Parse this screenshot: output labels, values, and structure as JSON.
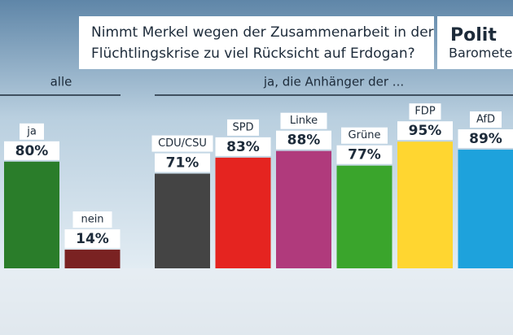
{
  "logo": {
    "line1": "Polit",
    "line2": "Barometer"
  },
  "chart_data": {
    "type": "bar",
    "title": [
      "Nimmt Merkel wegen der Zusammenarbeit in der",
      "Flüchtlingskrise zu viel Rücksicht auf Erdogan?"
    ],
    "groups": [
      {
        "label": "alle",
        "categories": [
          "ja",
          "nein"
        ],
        "values": [
          80,
          14
        ],
        "value_labels": [
          "80%",
          "14%"
        ],
        "colors": [
          "#2a7d2a",
          "#7a2222"
        ]
      },
      {
        "label": "ja, die Anhänger der ...",
        "categories": [
          "CDU/CSU",
          "SPD",
          "Linke",
          "Grüne",
          "FDP",
          "AfD"
        ],
        "values": [
          71,
          83,
          88,
          77,
          95,
          89
        ],
        "value_labels": [
          "71%",
          "83%",
          "88%",
          "77%",
          "95%",
          "89%"
        ],
        "colors": [
          "#444444",
          "#e52420",
          "#b03a7c",
          "#3aa52c",
          "#ffd630",
          "#1ea2dc"
        ]
      }
    ]
  }
}
